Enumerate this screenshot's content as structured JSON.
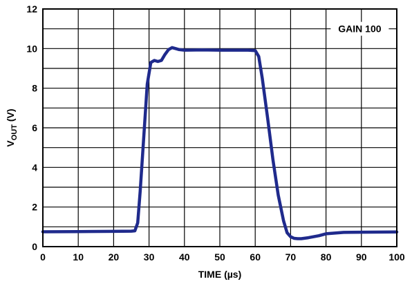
{
  "chart_data": {
    "type": "line",
    "xlabel": "TIME (µs)",
    "ylabel_main": "V",
    "ylabel_sub": "OUT",
    "ylabel_unit": " (V)",
    "xlim": [
      0,
      100
    ],
    "ylim": [
      0,
      12
    ],
    "x_ticks": [
      0,
      10,
      20,
      30,
      40,
      50,
      60,
      70,
      80,
      90,
      100
    ],
    "y_ticks": [
      0,
      2,
      4,
      6,
      8,
      10,
      12
    ],
    "grid": true,
    "annotation": "GAIN 100",
    "series": [
      {
        "color": "#1f2a8c",
        "x": [
          0,
          10,
          20,
          25,
          26,
          26.8,
          27.5,
          28.5,
          29.5,
          30.5,
          31.5,
          32.5,
          33.5,
          34.5,
          35.5,
          36.5,
          37.5,
          38.5,
          40,
          45,
          50,
          55,
          58,
          60,
          61,
          62,
          63.5,
          65,
          66.5,
          68,
          69,
          70,
          71,
          72,
          73,
          75,
          78,
          80,
          85,
          90,
          100
        ],
        "y": [
          0.75,
          0.76,
          0.77,
          0.78,
          0.8,
          1.2,
          2.8,
          5.5,
          8.2,
          9.3,
          9.4,
          9.35,
          9.4,
          9.7,
          9.95,
          10.05,
          10.0,
          9.95,
          9.92,
          9.93,
          9.92,
          9.92,
          9.92,
          9.9,
          9.6,
          8.5,
          6.5,
          4.4,
          2.6,
          1.3,
          0.7,
          0.5,
          0.42,
          0.4,
          0.4,
          0.45,
          0.55,
          0.65,
          0.72,
          0.73,
          0.74
        ]
      }
    ]
  }
}
